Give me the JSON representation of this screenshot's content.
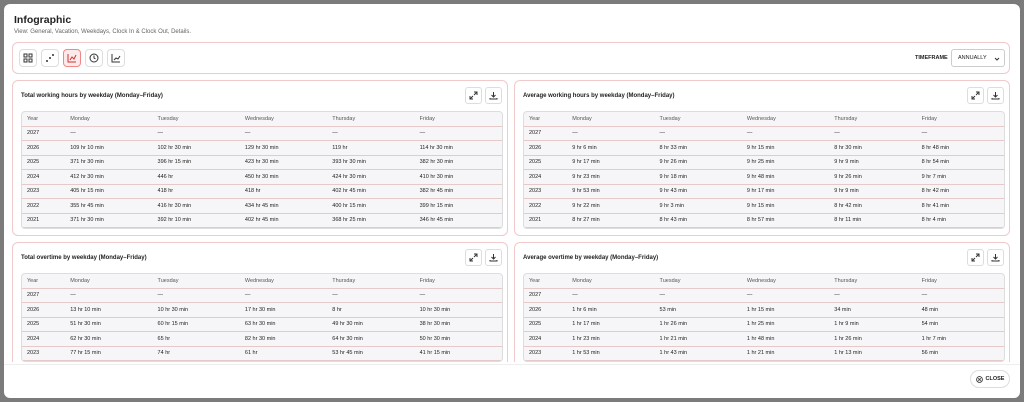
{
  "header": {
    "title": "Infographic",
    "subtitle": "View: General, Vacation, Weekdays, Clock In & Clock Out, Details."
  },
  "toolbar": {
    "timeframe_label": "TIMEFRAME",
    "timeframe_value": "ANNUALLY"
  },
  "panels": [
    {
      "title": "Total working hours by weekday (Monday–Friday)",
      "columns": [
        "Year",
        "Monday",
        "Tuesday",
        "Wednesday",
        "Thursday",
        "Friday"
      ],
      "rows": [
        [
          "2027",
          "—",
          "—",
          "—",
          "—",
          "—"
        ],
        [
          "2026",
          "109 hr 10 min",
          "102 hr 30 min",
          "129 hr 30 min",
          "119 hr",
          "114 hr 30 min"
        ],
        [
          "2025",
          "371 hr 30 min",
          "396 hr 15 min",
          "423 hr 30 min",
          "393 hr 30 min",
          "382 hr 30 min"
        ],
        [
          "2024",
          "412 hr 30 min",
          "446 hr",
          "450 hr 30 min",
          "424 hr 30 min",
          "410 hr 30 min"
        ],
        [
          "2023",
          "405 hr 15 min",
          "418 hr",
          "418 hr",
          "402 hr 45 min",
          "382 hr 45 min"
        ],
        [
          "2022",
          "355 hr 45 min",
          "416 hr 30 min",
          "434 hr 45 min",
          "400 hr 15 min",
          "399 hr 15 min"
        ],
        [
          "2021",
          "371 hr 30 min",
          "392 hr 10 min",
          "402 hr 45 min",
          "368 hr 25 min",
          "346 hr 45 min"
        ]
      ]
    },
    {
      "title": "Average working hours by weekday (Monday–Friday)",
      "columns": [
        "Year",
        "Monday",
        "Tuesday",
        "Wednesday",
        "Thursday",
        "Friday"
      ],
      "rows": [
        [
          "2027",
          "—",
          "—",
          "—",
          "—",
          "—"
        ],
        [
          "2026",
          "9 hr 6 min",
          "8 hr 33 min",
          "9 hr 15 min",
          "8 hr 30 min",
          "8 hr 48 min"
        ],
        [
          "2025",
          "9 hr 17 min",
          "9 hr 26 min",
          "9 hr 25 min",
          "9 hr 9 min",
          "8 hr 54 min"
        ],
        [
          "2024",
          "9 hr 23 min",
          "9 hr 18 min",
          "9 hr 48 min",
          "9 hr 26 min",
          "9 hr 7 min"
        ],
        [
          "2023",
          "9 hr 53 min",
          "9 hr 43 min",
          "9 hr 17 min",
          "9 hr 9 min",
          "8 hr 42 min"
        ],
        [
          "2022",
          "9 hr 22 min",
          "9 hr 3 min",
          "9 hr 15 min",
          "8 hr 42 min",
          "8 hr 41 min"
        ],
        [
          "2021",
          "8 hr 27 min",
          "8 hr 43 min",
          "8 hr 57 min",
          "8 hr 11 min",
          "8 hr 4 min"
        ]
      ]
    },
    {
      "title": "Total overtime by weekday (Monday–Friday)",
      "columns": [
        "Year",
        "Monday",
        "Tuesday",
        "Wednesday",
        "Thursday",
        "Friday"
      ],
      "rows": [
        [
          "2027",
          "—",
          "—",
          "—",
          "—",
          "—"
        ],
        [
          "2026",
          "13 hr 10 min",
          "10 hr 30 min",
          "17 hr 30 min",
          "8 hr",
          "10 hr 30 min"
        ],
        [
          "2025",
          "51 hr 30 min",
          "60 hr 15 min",
          "63 hr 30 min",
          "49 hr 30 min",
          "38 hr 30 min"
        ],
        [
          "2024",
          "62 hr 30 min",
          "65 hr",
          "82 hr 30 min",
          "64 hr 30 min",
          "50 hr 30 min"
        ],
        [
          "2023",
          "77 hr 15 min",
          "74 hr",
          "61 hr",
          "53 hr 45 min",
          "41 hr 15 min"
        ]
      ]
    },
    {
      "title": "Average overtime by weekday (Monday–Friday)",
      "columns": [
        "Year",
        "Monday",
        "Tuesday",
        "Wednesday",
        "Thursday",
        "Friday"
      ],
      "rows": [
        [
          "2027",
          "—",
          "—",
          "—",
          "—",
          "—"
        ],
        [
          "2026",
          "1 hr 6 min",
          "53 min",
          "1 hr 15 min",
          "34 min",
          "48 min"
        ],
        [
          "2025",
          "1 hr 17 min",
          "1 hr 26 min",
          "1 hr 25 min",
          "1 hr 9 min",
          "54 min"
        ],
        [
          "2024",
          "1 hr 23 min",
          "1 hr 21 min",
          "1 hr 48 min",
          "1 hr 26 min",
          "1 hr 7 min"
        ],
        [
          "2023",
          "1 hr 53 min",
          "1 hr 43 min",
          "1 hr 21 min",
          "1 hr 13 min",
          "56 min"
        ]
      ]
    }
  ],
  "footer": {
    "close": "CLOSE"
  }
}
